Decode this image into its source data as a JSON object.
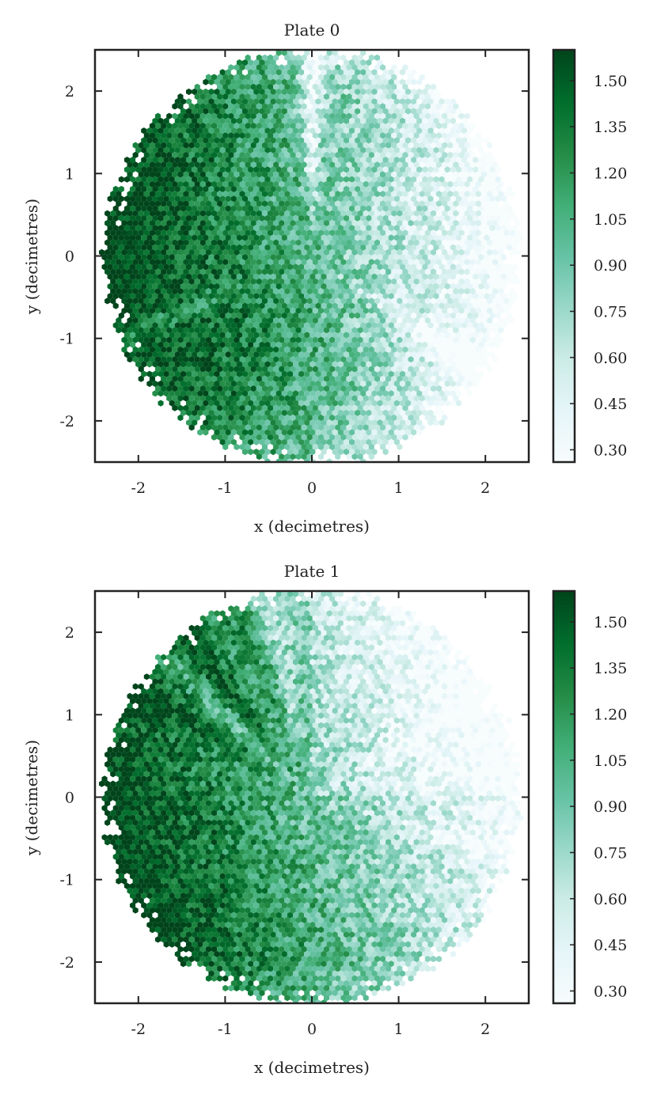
{
  "chart_data": [
    {
      "type": "heatmap",
      "subtype": "hexbin",
      "title": "Plate 0",
      "xlabel": "x (decimetres)",
      "ylabel": "y (decimetres)",
      "xlim": [
        -2.5,
        2.5
      ],
      "ylim": [
        -2.5,
        2.5
      ],
      "x_ticks": [
        -2,
        -1,
        0,
        1,
        2
      ],
      "x_tick_labels": [
        "-2",
        "-1",
        "0",
        "1",
        "2"
      ],
      "y_ticks": [
        -2,
        -1,
        0,
        1,
        2
      ],
      "y_tick_labels": [
        "-2",
        "-1",
        "0",
        "1",
        "2"
      ],
      "support": "disk of radius ~2.4 centered at (0, 0)",
      "colormap": "BuGn",
      "colorbar": {
        "vmin": 0.26,
        "vmax": 1.6,
        "ticks": [
          0.3,
          0.45,
          0.6,
          0.75,
          0.9,
          1.05,
          1.2,
          1.35,
          1.5
        ],
        "tick_labels": [
          "0.30",
          "0.45",
          "0.60",
          "0.75",
          "0.90",
          "1.05",
          "1.20",
          "1.35",
          "1.50"
        ]
      },
      "pattern": "high values (dark green) across left half and lower-left; lower values on the right half, with pale radial streaks near the top (x~0) and lower-right",
      "grid": false
    },
    {
      "type": "heatmap",
      "subtype": "hexbin",
      "title": "Plate 1",
      "xlabel": "x (decimetres)",
      "ylabel": "y (decimetres)",
      "xlim": [
        -2.5,
        2.5
      ],
      "ylim": [
        -2.5,
        2.5
      ],
      "x_ticks": [
        -2,
        -1,
        0,
        1,
        2
      ],
      "x_tick_labels": [
        "-2",
        "-1",
        "0",
        "1",
        "2"
      ],
      "y_ticks": [
        -2,
        -1,
        0,
        1,
        2
      ],
      "y_tick_labels": [
        "-2",
        "-1",
        "0",
        "1",
        "2"
      ],
      "support": "disk of radius ~2.4 centered at (0, 0)",
      "colormap": "BuGn",
      "colorbar": {
        "vmin": 0.26,
        "vmax": 1.6,
        "ticks": [
          0.3,
          0.45,
          0.6,
          0.75,
          0.9,
          1.05,
          1.2,
          1.35,
          1.5
        ],
        "tick_labels": [
          "0.30",
          "0.45",
          "0.60",
          "0.75",
          "0.90",
          "1.05",
          "1.20",
          "1.35",
          "1.50"
        ]
      },
      "pattern": "high values on the left and lower-left with radial dark streaks near upper-left; lighter values in the upper-right and right",
      "grid": false
    }
  ],
  "colors": {
    "bugn_stops": [
      "#f7fcfd",
      "#e5f5f9",
      "#ccece6",
      "#99d8c9",
      "#66c2a4",
      "#41ae76",
      "#238b45",
      "#006d2c",
      "#00441b"
    ],
    "frame": "#222222"
  }
}
